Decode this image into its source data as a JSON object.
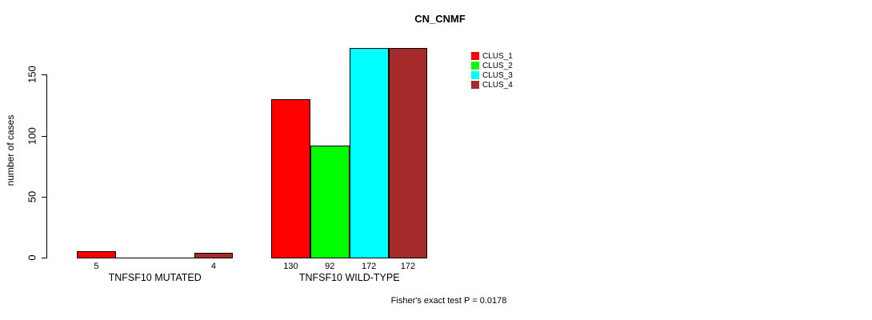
{
  "chart_data": {
    "type": "bar",
    "title": "CN_CNMF",
    "xlabel": "",
    "ylabel": "number of cases",
    "yticks": [
      0,
      50,
      100,
      150
    ],
    "ylim": [
      0,
      172
    ],
    "grid": false,
    "legend_position": "top-right-inside",
    "categories": [
      "TNFSF10 MUTATED",
      "TNFSF10 WILD-TYPE"
    ],
    "series": [
      {
        "name": "CLUS_1",
        "color": "#FF0000",
        "values": [
          5,
          130
        ]
      },
      {
        "name": "CLUS_2",
        "color": "#00FF00",
        "values": [
          0,
          92
        ]
      },
      {
        "name": "CLUS_3",
        "color": "#00FFFF",
        "values": [
          0,
          172
        ]
      },
      {
        "name": "CLUS_4",
        "color": "#A52A2A",
        "values": [
          4,
          172
        ]
      }
    ],
    "bar_value_labels": [
      [
        "5",
        "",
        "",
        "4"
      ],
      [
        "130",
        "92",
        "172",
        "172"
      ]
    ],
    "annotation": "Fisher's exact test P = 0.0178"
  }
}
